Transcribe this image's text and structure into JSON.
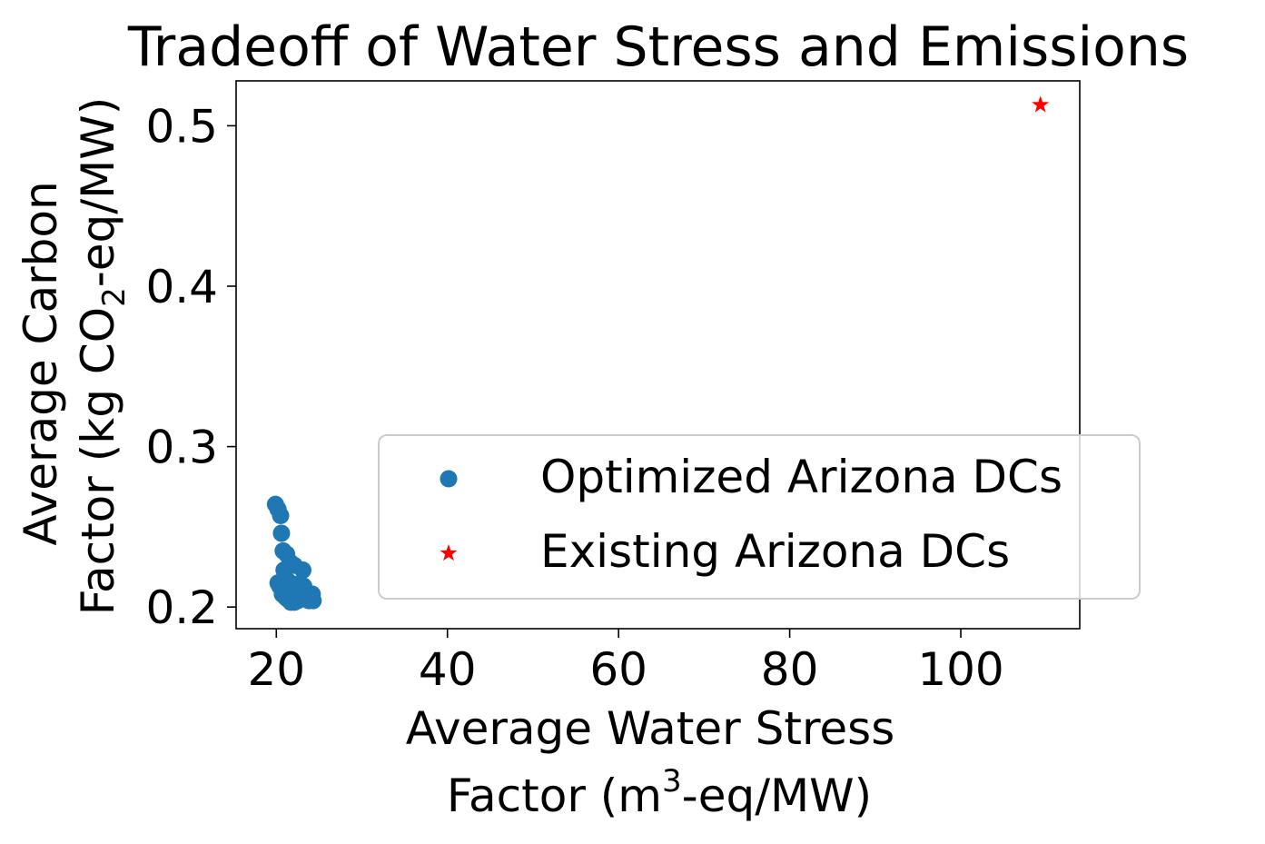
{
  "chart_data": {
    "type": "scatter",
    "title": "Tradeoff of Water Stress and Emissions",
    "xlabel": {
      "line1": "Average Water Stress",
      "line2_pre": "Factor (m",
      "line2_sup": "3",
      "line2_post": "-eq/MW)"
    },
    "ylabel": {
      "line1": "Average Carbon",
      "line2_pre": "Factor (kg CO",
      "line2_sub": "2",
      "line2_post": "-eq/MW)"
    },
    "xlim": [
      15.3,
      113.9
    ],
    "ylim": [
      0.1865,
      0.528
    ],
    "xticks": [
      20,
      40,
      60,
      80,
      100
    ],
    "xtick_labels": [
      "20",
      "40",
      "60",
      "80",
      "100"
    ],
    "yticks": [
      0.2,
      0.3,
      0.4,
      0.5
    ],
    "ytick_labels": [
      "0.2",
      "0.3",
      "0.4",
      "0.5"
    ],
    "grid": false,
    "legend_position": "lower-right",
    "series": [
      {
        "name": "Optimized Arizona DCs",
        "marker": "circle",
        "color": "#1f77b4",
        "points": [
          [
            19.9,
            0.264
          ],
          [
            20.2,
            0.261
          ],
          [
            20.5,
            0.257
          ],
          [
            20.6,
            0.246
          ],
          [
            20.8,
            0.235
          ],
          [
            21.2,
            0.233
          ],
          [
            21.6,
            0.228
          ],
          [
            20.9,
            0.223
          ],
          [
            22.1,
            0.226
          ],
          [
            23.1,
            0.223
          ],
          [
            20.2,
            0.215
          ],
          [
            20.4,
            0.213
          ],
          [
            20.9,
            0.213
          ],
          [
            21.4,
            0.216
          ],
          [
            21.5,
            0.211
          ],
          [
            22.2,
            0.214
          ],
          [
            22.6,
            0.212
          ],
          [
            23.2,
            0.213
          ],
          [
            20.7,
            0.208
          ],
          [
            21.1,
            0.206
          ],
          [
            21.3,
            0.205
          ],
          [
            21.7,
            0.203
          ],
          [
            22.1,
            0.203
          ],
          [
            22.5,
            0.204
          ],
          [
            22.9,
            0.205
          ],
          [
            23.4,
            0.206
          ],
          [
            23.8,
            0.204
          ],
          [
            24.0,
            0.205
          ],
          [
            24.2,
            0.208
          ],
          [
            23.5,
            0.209
          ],
          [
            24.3,
            0.204
          ]
        ]
      },
      {
        "name": "Existing Arizona DCs",
        "marker": "star",
        "color": "#ff0000",
        "points": [
          [
            109.3,
            0.513
          ]
        ]
      }
    ]
  }
}
